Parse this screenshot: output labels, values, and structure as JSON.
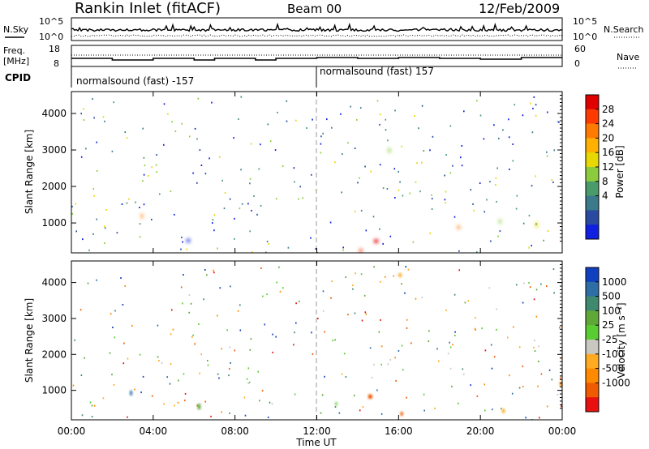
{
  "header": {
    "station": "Rankin Inlet (fitACF)",
    "beam": "Beam 00",
    "date": "12/Feb/2009"
  },
  "nsky_panel": {
    "left_label": "N.Sky",
    "right_label": "N.Search",
    "left_ticks": [
      "10^5",
      "10^0"
    ],
    "right_ticks": [
      "10^5",
      "10^0"
    ]
  },
  "freq_panel": {
    "left_label": "Freq.",
    "left_unit": "[MHz]",
    "right_label": "Nave",
    "left_ticks": [
      "18",
      "8"
    ],
    "right_ticks": [
      "60",
      "0"
    ]
  },
  "cpid_panel": {
    "label": "CPID",
    "segments": [
      {
        "text": "normalsound (fast) -157",
        "start": 0
      },
      {
        "text": "normalsound (fast) 157",
        "start": 12
      }
    ]
  },
  "chart_data": [
    {
      "type": "heatmap",
      "name": "power",
      "xlabel": "",
      "ylabel": "Slant Range [km]",
      "xlim": [
        0,
        24
      ],
      "ylim": [
        180,
        4600
      ],
      "yticks": [
        1000,
        2000,
        3000,
        4000
      ],
      "colorbar": {
        "label": "Power [dB]",
        "ticks": [
          "28",
          "24",
          "20",
          "16",
          "12",
          "8",
          "4"
        ],
        "colors": [
          "#e00000",
          "#ff3a00",
          "#ff7a00",
          "#ffb000",
          "#e6d800",
          "#8ccc3c",
          "#4a9a6a",
          "#3a7a8a",
          "#2a4aa0",
          "#1020e0"
        ]
      }
    },
    {
      "type": "heatmap",
      "name": "velocity",
      "xlabel": "Time UT",
      "ylabel": "Slant Range [km]",
      "xlim": [
        0,
        24
      ],
      "ylim": [
        180,
        4600
      ],
      "yticks": [
        1000,
        2000,
        3000,
        4000
      ],
      "xticks": [
        "00:00",
        "04:00",
        "08:00",
        "12:00",
        "16:00",
        "20:00",
        "00:00"
      ],
      "colorbar": {
        "label": "Velocity [m s⁻¹]",
        "ticks": [
          "1000",
          "500",
          "100",
          "25",
          "-25",
          "-100",
          "-500",
          "-1000"
        ],
        "colors": [
          "#1040c0",
          "#2e6ea6",
          "#3f8a6e",
          "#5fa838",
          "#58cc30",
          "#c8c8c0",
          "#ffaa20",
          "#ff8a00",
          "#f05a00",
          "#e81010"
        ]
      }
    }
  ]
}
